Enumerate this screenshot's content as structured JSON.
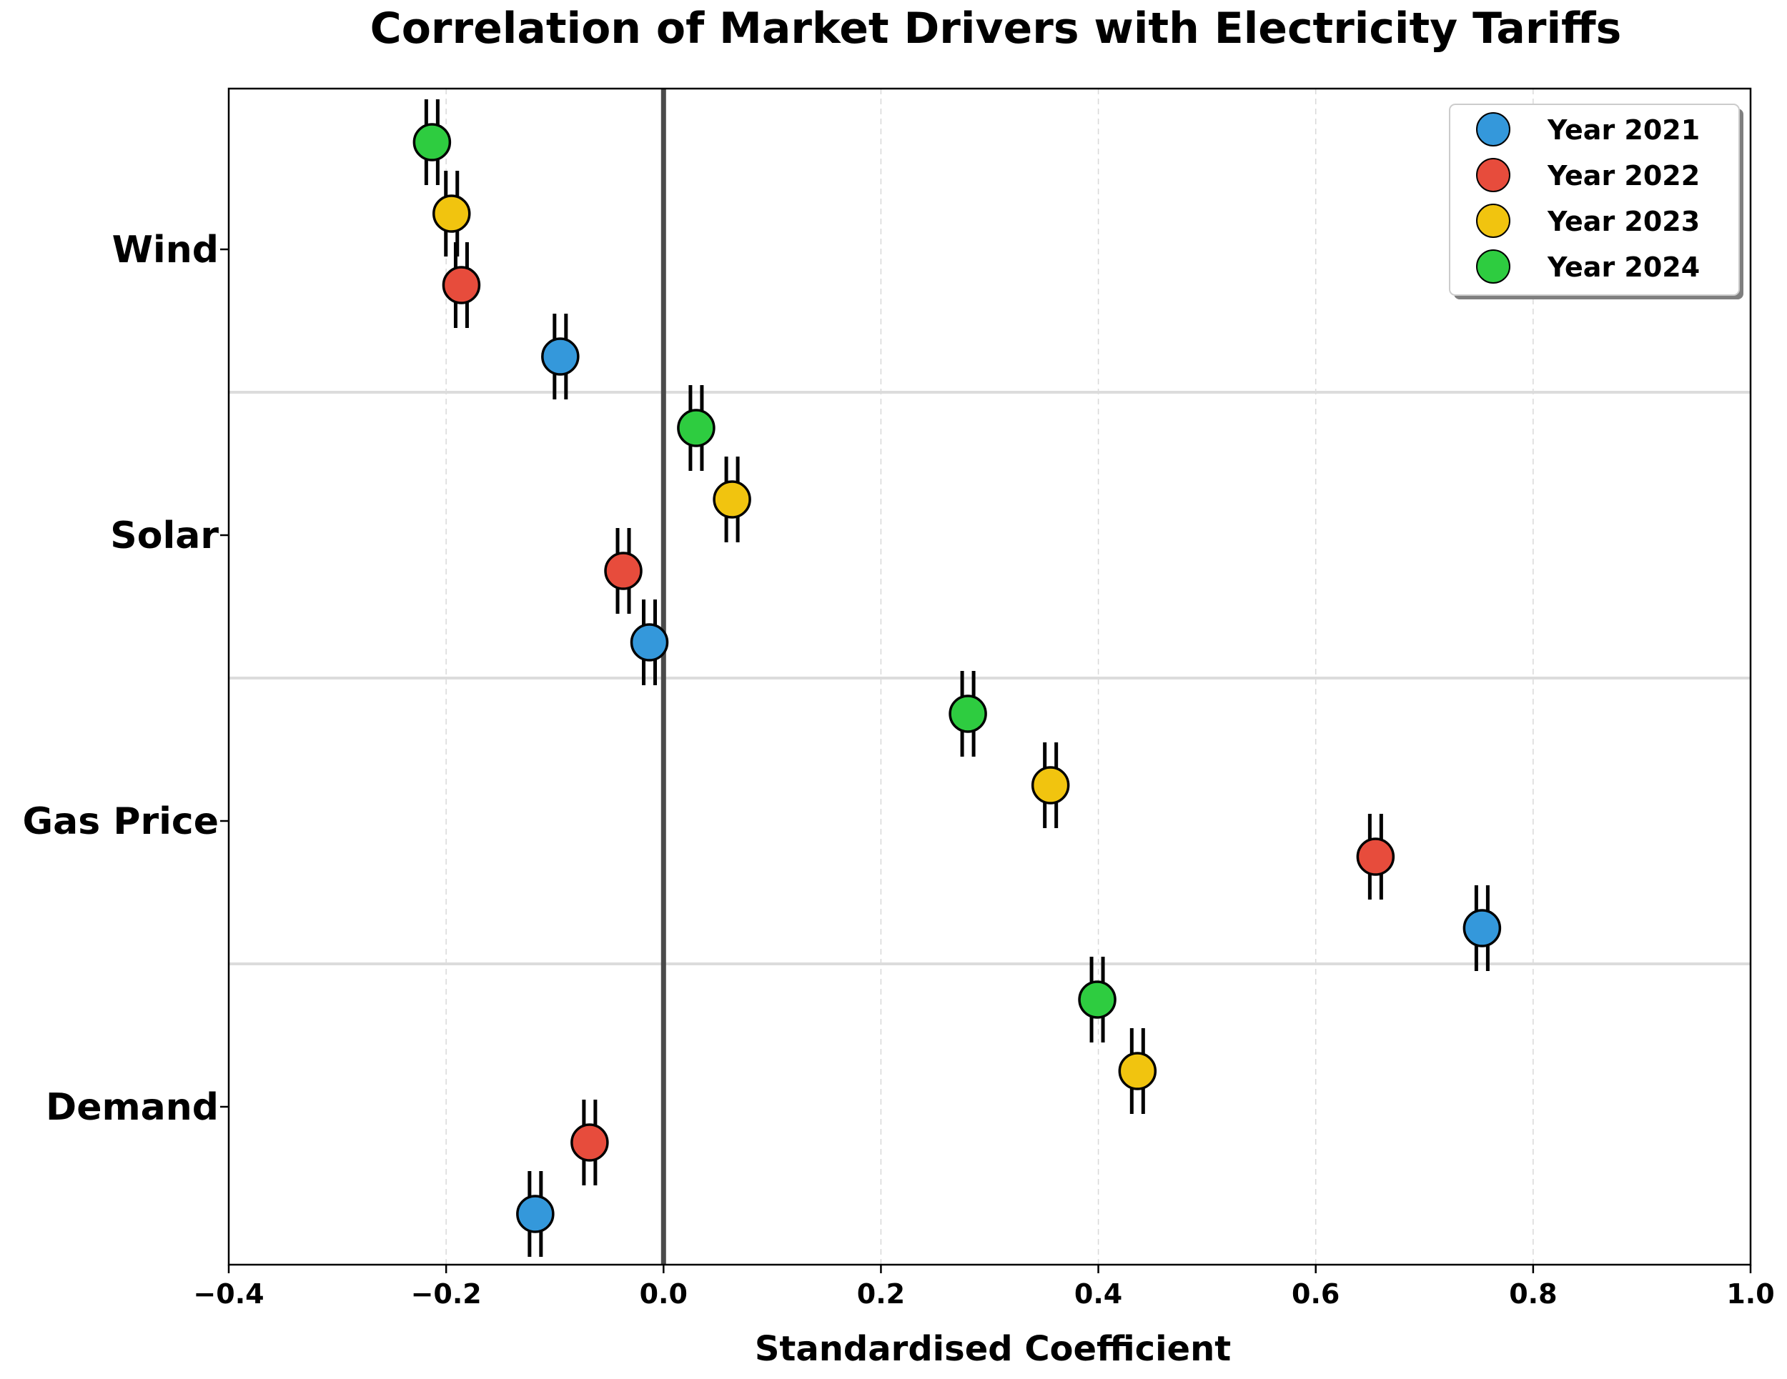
{
  "chart_data": {
    "type": "scatter",
    "title": "Correlation of Market Drivers with Electricity Tariffs",
    "xlabel": "Standardised Coefficient",
    "ylabel": "",
    "xlim": [
      -0.4,
      1.0
    ],
    "xticks": [
      -0.4,
      -0.2,
      0.0,
      0.2,
      0.4,
      0.6,
      0.8,
      1.0
    ],
    "xtick_labels": [
      "−0.4",
      "−0.2",
      "0.0",
      "0.2",
      "0.4",
      "0.6",
      "0.8",
      "1.0"
    ],
    "categories": [
      "Wind",
      "Solar",
      "Gas Price",
      "Demand"
    ],
    "reference_line_x": 0.0,
    "grid": true,
    "legend_position": "top-right",
    "series": [
      {
        "name": "Year 2021",
        "color": "#3498db",
        "values": [
          -0.095,
          -0.013,
          0.753,
          -0.118
        ]
      },
      {
        "name": "Year 2022",
        "color": "#e74c3c",
        "values": [
          -0.186,
          -0.037,
          0.655,
          -0.068
        ]
      },
      {
        "name": "Year 2023",
        "color": "#f1c40f",
        "values": [
          -0.195,
          0.063,
          0.356,
          0.436
        ]
      },
      {
        "name": "Year 2024",
        "color": "#2ecc40",
        "values": [
          -0.213,
          0.03,
          0.28,
          0.399
        ]
      }
    ]
  }
}
